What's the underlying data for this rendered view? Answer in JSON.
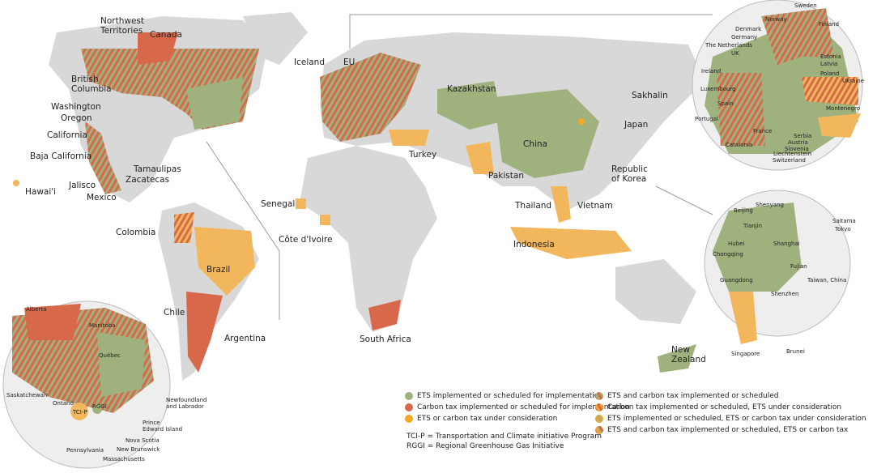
{
  "colors": {
    "land": "#d8d8d8",
    "ets": "#9fb27e",
    "tax": "#d8684a",
    "consideration": "#f2b75c",
    "consideration_dot": "#f5a623",
    "line": "#999999"
  },
  "main_labels": [
    "Northwest\nTerritories",
    "Canada",
    "British\nColumbia",
    "Washington",
    "Oregon",
    "California",
    "Baja California",
    "Tamaulipas",
    "Zacatecas",
    "Jalisco",
    "Mexico",
    "Hawai'i",
    "Iceland",
    "EU",
    "Kazakhstan",
    "China",
    "Sakhalin",
    "Japan",
    "Republic\nof Korea",
    "Turkey",
    "Pakistan",
    "Senegal",
    "Côte d'Ivoire",
    "Thailand",
    "Vietnam",
    "Indonesia",
    "Colombia",
    "Brazil",
    "Chile",
    "Argentina",
    "South Africa",
    "New\nZealand"
  ],
  "europe_labels": [
    "Sweden",
    "Norway",
    "Finland",
    "Denmark",
    "Germany",
    "The Netherlands",
    "UK",
    "Ireland",
    "Estonia",
    "Latvia",
    "Poland",
    "Ukraine",
    "Luxembourg",
    "Spain",
    "Montenegro",
    "Portugal",
    "France",
    "Catalonia",
    "Serbia",
    "Austria",
    "Slovenia",
    "Liechtenstein",
    "Switzerland"
  ],
  "asia_labels": [
    "Shenyang",
    "Beijing",
    "Saitama",
    "Tokyo",
    "Tianjin",
    "Hubei",
    "Shanghai",
    "Chongqing",
    "Fujian",
    "Guangdong",
    "Taiwan, China",
    "Shenzhen",
    "Singapore",
    "Brunei"
  ],
  "america_labels": [
    "Alberta",
    "Manitoba",
    "Québec",
    "Saskatchewan",
    "Ontario",
    "RGGI",
    "TCI-P",
    "Newfoundland\nand Labrador",
    "Prince\nEdward Island",
    "Nova Scotia",
    "New Brunswick",
    "Pennsylvania",
    "Massachusetts"
  ],
  "legend": {
    "items": [
      {
        "label": "ETS implemented or scheduled for implementation",
        "color": "#9fb27e"
      },
      {
        "label": "Carbon tax implemented or scheduled for implementation",
        "color": "#d8684a"
      },
      {
        "label": "ETS or carbon tax under consideration",
        "color": "#f5a623"
      },
      {
        "label": "ETS and carbon tax implemented or scheduled",
        "color": "striped green/red"
      },
      {
        "label": "Carbon tax implemented or scheduled, ETS under consideration",
        "color": "striped red/orange"
      },
      {
        "label": "ETS implemented or scheduled, ETS or carbon tax under consideration",
        "color": "striped green/orange"
      },
      {
        "label": "ETS and carbon tax implemented or scheduled, ETS or carbon tax",
        "color": "striped red/orange/green"
      }
    ],
    "notes": [
      "TCI-P = Transportation and Climate initiative Program",
      "RGGI = Regional Greenhouse Gas Initiative"
    ]
  }
}
